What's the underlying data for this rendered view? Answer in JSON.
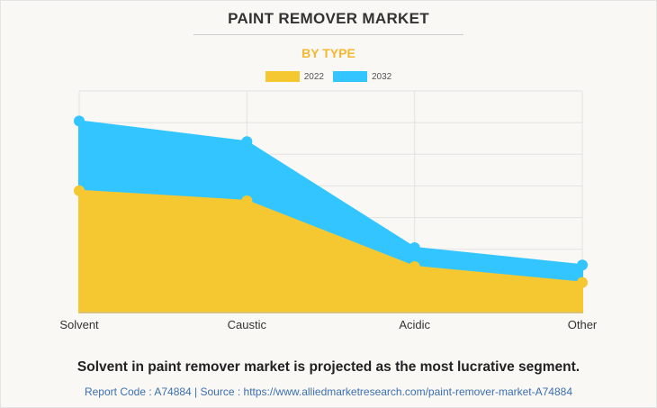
{
  "header": {
    "title": "PAINT REMOVER MARKET",
    "subtitle": "BY TYPE"
  },
  "colors": {
    "series_2022": "#f5c832",
    "series_2032": "#33c5ff",
    "subtitle": "#f5b731",
    "grid": "#e2e2e2"
  },
  "chart_data": {
    "type": "area",
    "title": "PAINT REMOVER MARKET",
    "subtitle": "BY TYPE",
    "categories": [
      "Solvent",
      "Caustic",
      "Acidic",
      "Other"
    ],
    "series": [
      {
        "name": "2022",
        "values": [
          38.5,
          35.3,
          14.5,
          9.5
        ]
      },
      {
        "name": "2032",
        "values": [
          60.5,
          54.0,
          20.5,
          15.0
        ]
      }
    ],
    "stacked": false,
    "ylim": [
      0,
      70
    ],
    "grid": true,
    "legend_position": "top-center",
    "y_tick_labels_shown": false
  },
  "footer": {
    "headline": "Solvent in paint remover market is projected as the most lucrative segment.",
    "source": "Report Code : A74884  |  Source : https://www.alliedmarketresearch.com/paint-remover-market-A74884"
  }
}
